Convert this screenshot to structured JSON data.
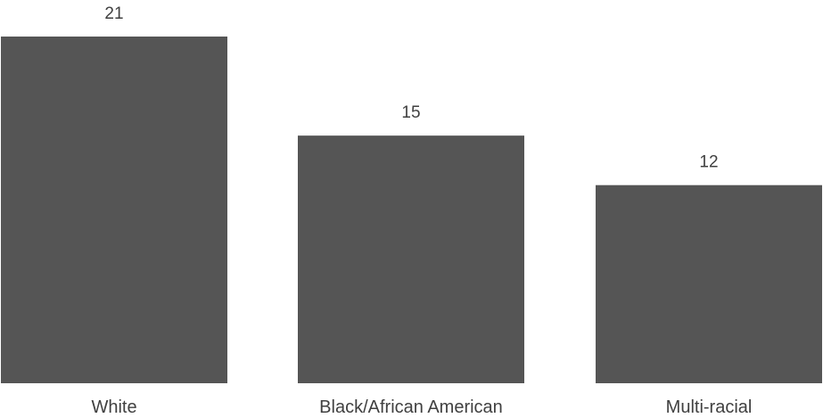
{
  "chart_data": {
    "type": "bar",
    "categories": [
      "White",
      "Black/African American",
      "Multi-racial"
    ],
    "values": [
      21,
      15,
      12
    ],
    "title": "",
    "xlabel": "",
    "ylabel": "",
    "ylim": [
      0,
      21
    ],
    "grid": false,
    "legend": "none",
    "bar_color": "#555555",
    "label_color": "#404040"
  }
}
